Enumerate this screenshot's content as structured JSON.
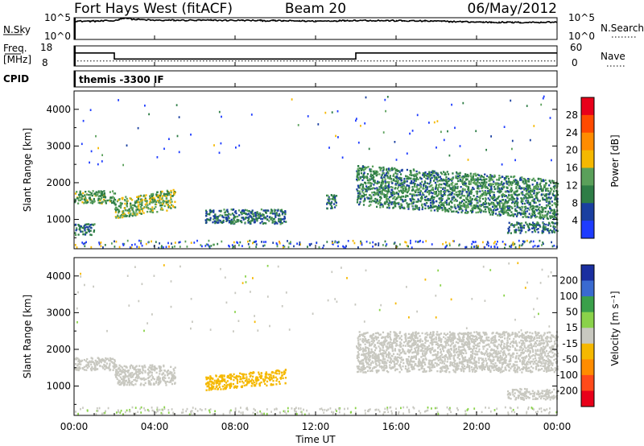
{
  "header": {
    "station": "Fort Hays West (fitACF)",
    "beam": "Beam 20",
    "date": "06/May/2012"
  },
  "top_panels": {
    "nsky_label": "N.Sky",
    "nsky_ticks": [
      "10^5",
      "10^0"
    ],
    "nsearch_label": "N.Search",
    "nsearch_ticks": [
      "10^5",
      "10^0"
    ],
    "freq_label_line1": "Freq.",
    "freq_label_line2": "[MHz]",
    "freq_ticks": [
      "18",
      "8"
    ],
    "nave_label": "Nave",
    "nave_ticks": [
      "60",
      "0"
    ],
    "cpid_label": "CPID",
    "cpid_text": "themis -3300 IF"
  },
  "x_axis": {
    "label": "Time UT",
    "ticks": [
      "00:00",
      "04:00",
      "08:00",
      "12:00",
      "16:00",
      "20:00",
      "00:00"
    ]
  },
  "power_panel": {
    "ylabel": "Slant Range [km]",
    "yticks": [
      "4000",
      "3000",
      "2000",
      "1000"
    ],
    "colorbar_label": "Power [dB]",
    "colorbar_ticks": [
      "28",
      "24",
      "20",
      "16",
      "12",
      "8",
      "4"
    ],
    "colorbar_colors": [
      "#e8001a",
      "#ff4a00",
      "#ff8c00",
      "#f5b800",
      "#5aa05a",
      "#2e7d46",
      "#1a3fa0",
      "#1e3cff"
    ]
  },
  "velocity_panel": {
    "ylabel": "Slant Range [km]",
    "yticks": [
      "4000",
      "3000",
      "2000",
      "1000"
    ],
    "colorbar_label": "Velocity [m s⁻¹]",
    "colorbar_ticks": [
      "200",
      "100",
      "50",
      "15",
      "-15",
      "-50",
      "-100",
      "-200"
    ],
    "colorbar_colors": [
      "#1a2fa0",
      "#3a6ad0",
      "#3aa04a",
      "#8ad24a",
      "#c8c8c0",
      "#f5b800",
      "#ff8c00",
      "#ff4a1a",
      "#e8001a"
    ]
  },
  "chart_data": [
    {
      "type": "line",
      "title": "N.Sky / N.Search",
      "xlabel": "Time UT",
      "x": [
        0,
        1,
        2,
        2.5,
        3,
        4,
        6,
        8,
        10,
        12,
        14,
        16,
        18,
        20,
        22,
        24
      ],
      "series": [
        {
          "name": "N.Sky",
          "values": [
            4.2,
            4.2,
            4.3,
            5.0,
            4.6,
            4.4,
            4.4,
            4.4,
            4.3,
            4.2,
            4.4,
            4.3,
            4.2,
            4.0,
            3.9,
            4.0
          ]
        },
        {
          "name": "N.Search",
          "values": [
            4.2,
            4.2,
            4.3,
            4.9,
            4.6,
            4.4,
            4.4,
            4.4,
            4.3,
            4.2,
            4.4,
            4.3,
            4.2,
            4.0,
            3.9,
            4.0
          ]
        }
      ],
      "ylim": [
        0,
        5
      ],
      "yscale": "log10"
    },
    {
      "type": "line",
      "title": "Freq. / Nave",
      "xlabel": "Time UT",
      "x": [
        0,
        2,
        2,
        14,
        14,
        24
      ],
      "series": [
        {
          "name": "Freq. [MHz]",
          "values": [
            14.5,
            14.5,
            11.5,
            11.5,
            14.5,
            14.5
          ]
        },
        {
          "name": "Nave",
          "values": [
            15,
            15,
            15,
            15,
            15,
            15
          ]
        }
      ],
      "ylim": [
        8,
        18
      ]
    },
    {
      "type": "heatmap",
      "title": "Power",
      "xlabel": "Time UT",
      "ylabel": "Slant Range [km]",
      "xlim": [
        0,
        24
      ],
      "ylim": [
        200,
        4500
      ],
      "colorbar": {
        "label": "Power [dB]",
        "range": [
          0,
          32
        ]
      },
      "features": [
        {
          "t_start": 0.0,
          "t_end": 2.0,
          "r_start": 1450,
          "r_end": 1800,
          "value": 12
        },
        {
          "t_start": 0.0,
          "t_end": 1.0,
          "r_start": 600,
          "r_end": 900,
          "value": 8
        },
        {
          "t_start": 2.0,
          "t_end": 5.0,
          "r_start": 1050,
          "r_end": 1600,
          "value": 14
        },
        {
          "t_start": 6.5,
          "t_end": 10.5,
          "r_start": 900,
          "r_end": 1300,
          "value": 8
        },
        {
          "t_start": 12.5,
          "t_end": 13.0,
          "r_start": 1300,
          "r_end": 1700,
          "value": 8
        },
        {
          "t_start": 14.0,
          "t_end": 24.0,
          "r_start": 1400,
          "r_end": 2500,
          "value": 10
        },
        {
          "t_start": 21.5,
          "t_end": 24.0,
          "r_start": 650,
          "r_end": 950,
          "value": 8
        }
      ]
    },
    {
      "type": "heatmap",
      "title": "Velocity",
      "xlabel": "Time UT",
      "ylabel": "Slant Range [km]",
      "xlim": [
        0,
        24
      ],
      "ylim": [
        200,
        4500
      ],
      "colorbar": {
        "label": "Velocity [m s⁻¹]",
        "range": [
          -250,
          250
        ]
      },
      "features": [
        {
          "t_start": 0.0,
          "t_end": 2.0,
          "r_start": 1450,
          "r_end": 1800,
          "value": 0
        },
        {
          "t_start": 2.0,
          "t_end": 5.0,
          "r_start": 1050,
          "r_end": 1600,
          "value": 0
        },
        {
          "t_start": 6.5,
          "t_end": 10.5,
          "r_start": 900,
          "r_end": 1300,
          "value": -40
        },
        {
          "t_start": 14.0,
          "t_end": 24.0,
          "r_start": 1400,
          "r_end": 2500,
          "value": 0
        },
        {
          "t_start": 21.5,
          "t_end": 24.0,
          "r_start": 650,
          "r_end": 950,
          "value": 0
        }
      ]
    }
  ]
}
